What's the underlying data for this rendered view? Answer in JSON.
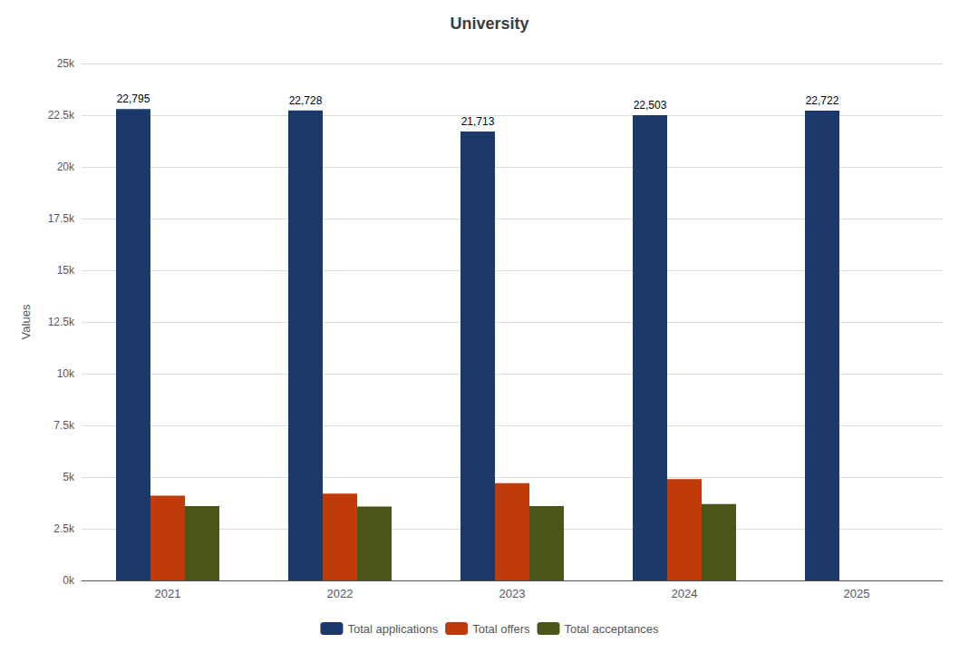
{
  "chart_data": {
    "type": "bar",
    "title": "University",
    "ylabel": "Values",
    "categories": [
      "2021",
      "2022",
      "2023",
      "2024",
      "2025"
    ],
    "series": [
      {
        "name": "Total applications",
        "color": "#1b3a6b",
        "values": [
          22795,
          22728,
          21713,
          22503,
          22722
        ],
        "data_labels": true,
        "value_labels": [
          "22,795",
          "22,728",
          "21,713",
          "22,503",
          "22,722"
        ]
      },
      {
        "name": "Total offers",
        "color": "#bf3b0a",
        "values": [
          4100,
          4200,
          4700,
          4900,
          null
        ]
      },
      {
        "name": "Total acceptances",
        "color": "#4a5518",
        "values": [
          3600,
          3580,
          3600,
          3700,
          null
        ]
      }
    ],
    "ylim": [
      0,
      25000
    ],
    "yticks": [
      {
        "value": 0,
        "label": "0k"
      },
      {
        "value": 2500,
        "label": "2.5k"
      },
      {
        "value": 5000,
        "label": "5k"
      },
      {
        "value": 7500,
        "label": "7.5k"
      },
      {
        "value": 10000,
        "label": "10k"
      },
      {
        "value": 12500,
        "label": "12.5k"
      },
      {
        "value": 15000,
        "label": "15k"
      },
      {
        "value": 17500,
        "label": "17.5k"
      },
      {
        "value": 20000,
        "label": "20k"
      },
      {
        "value": 22500,
        "label": "22.5k"
      },
      {
        "value": 25000,
        "label": "25k"
      }
    ],
    "grid": true,
    "legend": "bottom"
  }
}
